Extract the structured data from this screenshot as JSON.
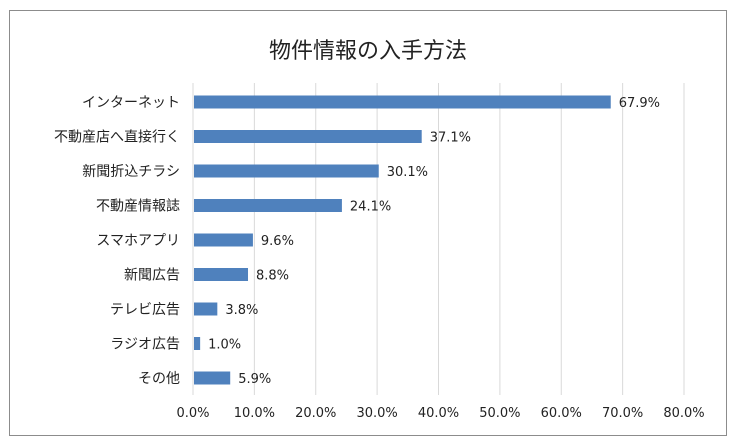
{
  "chart_data": {
    "type": "bar",
    "orientation": "horizontal",
    "title": "物件情報の入手方法",
    "categories": [
      "インターネット",
      "不動産店へ直接行く",
      "新聞折込チラシ",
      "不動産情報誌",
      "スマホアプリ",
      "新聞広告",
      "テレビ広告",
      "ラジオ広告",
      "その他"
    ],
    "values": [
      67.9,
      37.1,
      30.1,
      24.1,
      9.6,
      8.8,
      3.8,
      1.0,
      5.9
    ],
    "value_labels": [
      "67.9%",
      "37.1%",
      "30.1%",
      "24.1%",
      "9.6%",
      "8.8%",
      "3.8%",
      "1.0%",
      "5.9%"
    ],
    "xlim": [
      0,
      80
    ],
    "xticks": [
      0,
      10,
      20,
      30,
      40,
      50,
      60,
      70,
      80
    ],
    "xtick_labels": [
      "0.0%",
      "10.0%",
      "20.0%",
      "30.0%",
      "40.0%",
      "50.0%",
      "60.0%",
      "70.0%",
      "80.0%"
    ],
    "xlabel": "",
    "ylabel": "",
    "grid": true,
    "legend": "none",
    "bar_color": "#4f81bd"
  }
}
